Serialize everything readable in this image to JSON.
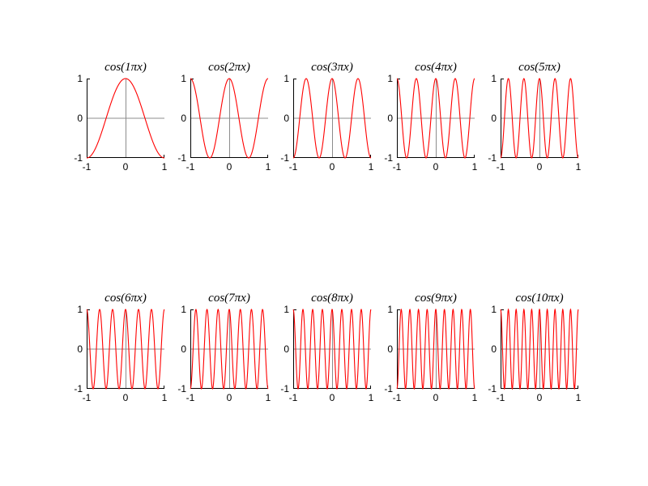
{
  "figure": {
    "layout": {
      "rows": 2,
      "cols": 5
    },
    "background": "#ffffff"
  },
  "style": {
    "curve_color": "#ff0000",
    "zero_line_color": "#8c8c8c",
    "spine_color": "#000000",
    "label_color": "#000000"
  },
  "axes": {
    "x_ticks": [
      "-1",
      "0",
      "1"
    ],
    "y_ticks": [
      "1",
      "0",
      "-1"
    ],
    "grid": false,
    "legend": "none",
    "box": "off"
  },
  "chart_data": [
    {
      "type": "line",
      "title": "cos(1πx)",
      "expression": "y = cos(1·π·x)",
      "frequency": 1,
      "x_range": [
        -1,
        1
      ],
      "y_range": [
        -1,
        1
      ],
      "x_tick_values": [
        -1,
        0,
        1
      ],
      "y_tick_values": [
        1,
        0,
        -1
      ],
      "color": "#ff0000"
    },
    {
      "type": "line",
      "title": "cos(2πx)",
      "expression": "y = cos(2·π·x)",
      "frequency": 2,
      "x_range": [
        -1,
        1
      ],
      "y_range": [
        -1,
        1
      ],
      "x_tick_values": [
        -1,
        0,
        1
      ],
      "y_tick_values": [
        1,
        0,
        -1
      ],
      "color": "#ff0000"
    },
    {
      "type": "line",
      "title": "cos(3πx)",
      "expression": "y = cos(3·π·x)",
      "frequency": 3,
      "x_range": [
        -1,
        1
      ],
      "y_range": [
        -1,
        1
      ],
      "x_tick_values": [
        -1,
        0,
        1
      ],
      "y_tick_values": [
        1,
        0,
        -1
      ],
      "color": "#ff0000"
    },
    {
      "type": "line",
      "title": "cos(4πx)",
      "expression": "y = cos(4·π·x)",
      "frequency": 4,
      "x_range": [
        -1,
        1
      ],
      "y_range": [
        -1,
        1
      ],
      "x_tick_values": [
        -1,
        0,
        1
      ],
      "y_tick_values": [
        1,
        0,
        -1
      ],
      "color": "#ff0000"
    },
    {
      "type": "line",
      "title": "cos(5πx)",
      "expression": "y = cos(5·π·x)",
      "frequency": 5,
      "x_range": [
        -1,
        1
      ],
      "y_range": [
        -1,
        1
      ],
      "x_tick_values": [
        -1,
        0,
        1
      ],
      "y_tick_values": [
        1,
        0,
        -1
      ],
      "color": "#ff0000"
    },
    {
      "type": "line",
      "title": "cos(6πx)",
      "expression": "y = cos(6·π·x)",
      "frequency": 6,
      "x_range": [
        -1,
        1
      ],
      "y_range": [
        -1,
        1
      ],
      "x_tick_values": [
        -1,
        0,
        1
      ],
      "y_tick_values": [
        1,
        0,
        -1
      ],
      "color": "#ff0000"
    },
    {
      "type": "line",
      "title": "cos(7πx)",
      "expression": "y = cos(7·π·x)",
      "frequency": 7,
      "x_range": [
        -1,
        1
      ],
      "y_range": [
        -1,
        1
      ],
      "x_tick_values": [
        -1,
        0,
        1
      ],
      "y_tick_values": [
        1,
        0,
        -1
      ],
      "color": "#ff0000"
    },
    {
      "type": "line",
      "title": "cos(8πx)",
      "expression": "y = cos(8·π·x)",
      "frequency": 8,
      "x_range": [
        -1,
        1
      ],
      "y_range": [
        -1,
        1
      ],
      "x_tick_values": [
        -1,
        0,
        1
      ],
      "y_tick_values": [
        1,
        0,
        -1
      ],
      "color": "#ff0000"
    },
    {
      "type": "line",
      "title": "cos(9πx)",
      "expression": "y = cos(9·π·x)",
      "frequency": 9,
      "x_range": [
        -1,
        1
      ],
      "y_range": [
        -1,
        1
      ],
      "x_tick_values": [
        -1,
        0,
        1
      ],
      "y_tick_values": [
        1,
        0,
        -1
      ],
      "color": "#ff0000"
    },
    {
      "type": "line",
      "title": "cos(10πx)",
      "expression": "y = cos(10·π·x)",
      "frequency": 10,
      "x_range": [
        -1,
        1
      ],
      "y_range": [
        -1,
        1
      ],
      "x_tick_values": [
        -1,
        0,
        1
      ],
      "y_tick_values": [
        1,
        0,
        -1
      ],
      "color": "#ff0000"
    }
  ]
}
